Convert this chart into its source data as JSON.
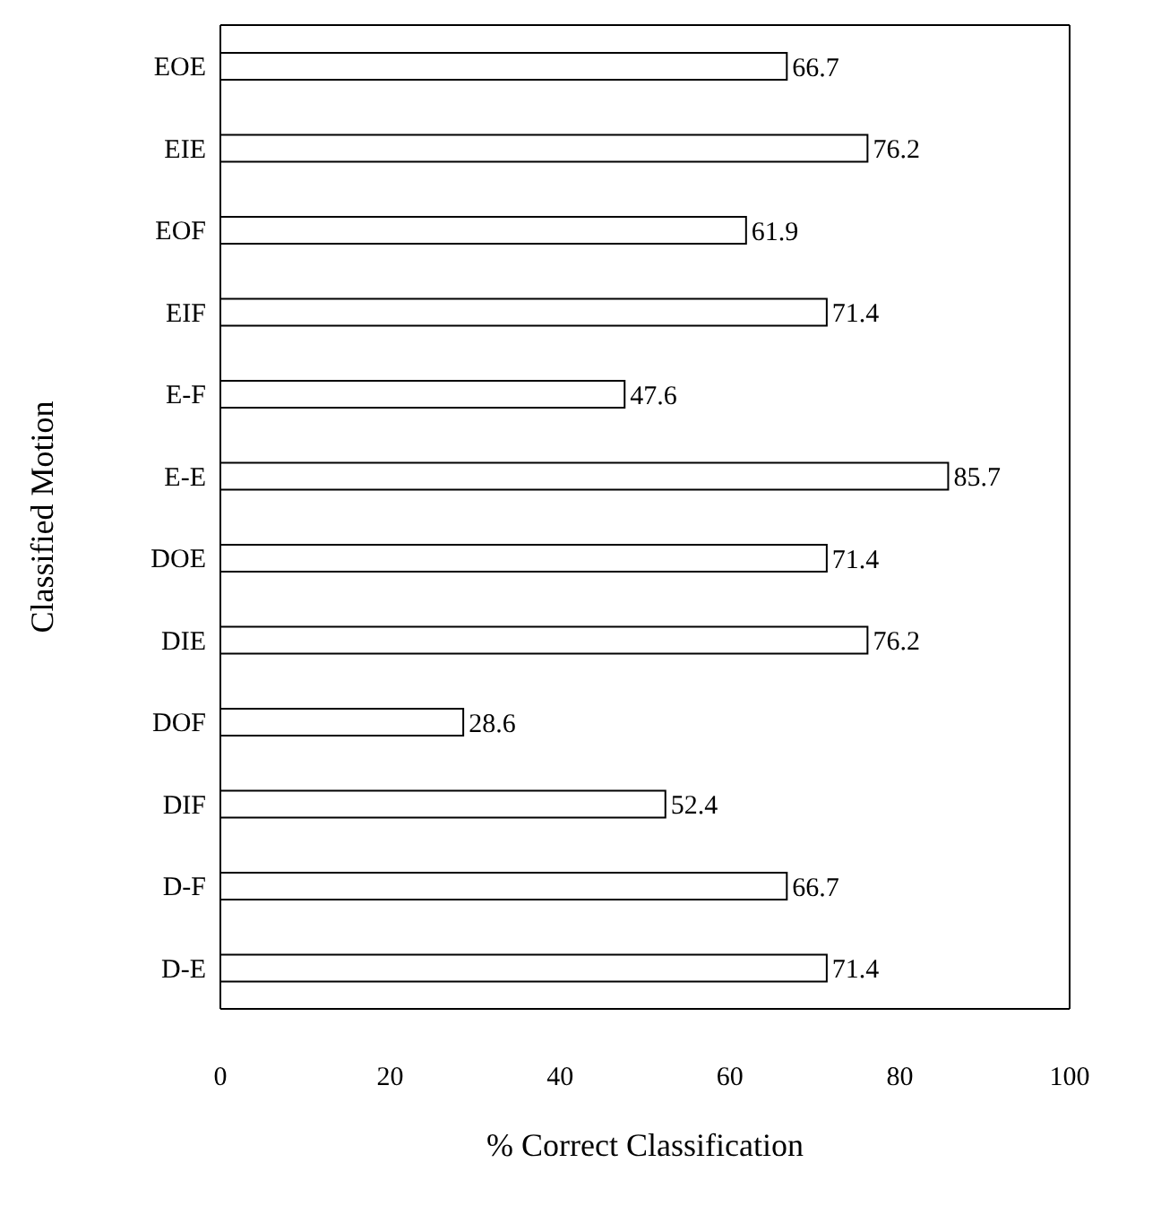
{
  "chart_data": {
    "type": "bar",
    "orientation": "horizontal",
    "xlabel": "% Correct Classification",
    "ylabel": "Classified Motion",
    "categories": [
      "EOE",
      "EIE",
      "EOF",
      "EIF",
      "E-F",
      "E-E",
      "DOE",
      "DIE",
      "DOF",
      "DIF",
      "D-F",
      "D-E"
    ],
    "values": [
      66.7,
      76.2,
      61.9,
      71.4,
      47.6,
      85.7,
      71.4,
      76.2,
      28.6,
      52.4,
      66.7,
      71.4
    ],
    "color": "#ffffff",
    "data_labels": true,
    "xlim": [
      0,
      100
    ],
    "xticks": [
      0,
      20,
      40,
      60,
      80,
      100
    ]
  }
}
